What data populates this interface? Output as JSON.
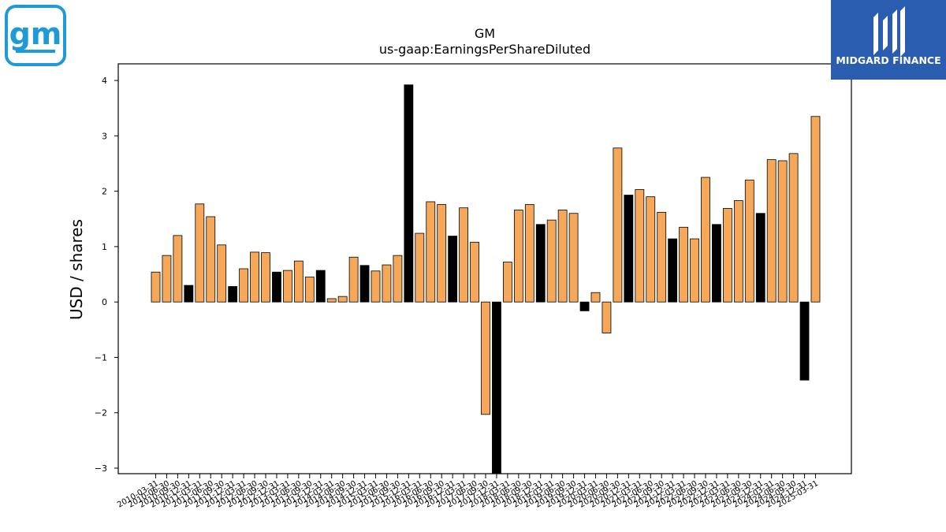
{
  "logo": {
    "text": "gm",
    "icon": "gm-logo-icon",
    "color": "#1e9bd7"
  },
  "brand": {
    "name": "MIDGARD FINANCE",
    "icon": "midgard-finance-logo-icon",
    "color": "#2a5db0"
  },
  "chart_data": {
    "type": "bar",
    "title": "GM",
    "subtitle": "us-gaap:EarningsPerShareDiluted",
    "xlabel": "",
    "ylabel": "USD / shares",
    "ylim": [
      -3.1,
      4.3
    ],
    "yticks": [
      -3,
      -2,
      -1,
      0,
      1,
      2,
      3,
      4
    ],
    "grid": false,
    "colors": {
      "quarter": "#f5a85a",
      "annual": "#000000"
    },
    "categories": [
      "2010-03-31",
      "2010-06-30",
      "2010-09-30",
      "2010-12-31",
      "2011-03-31",
      "2011-06-30",
      "2011-09-30",
      "2011-12-31",
      "2012-03-31",
      "2012-06-30",
      "2012-09-30",
      "2012-12-31",
      "2013-03-31",
      "2013-06-30",
      "2013-09-30",
      "2013-12-31",
      "2014-03-31",
      "2014-06-30",
      "2014-09-30",
      "2014-12-31",
      "2015-03-31",
      "2015-06-30",
      "2015-09-30",
      "2015-12-31",
      "2016-03-31",
      "2016-06-30",
      "2016-09-30",
      "2016-12-31",
      "2017-03-31",
      "2017-06-30",
      "2017-09-30",
      "2017-12-31",
      "2018-03-31",
      "2018-06-30",
      "2018-09-30",
      "2018-12-31",
      "2019-03-31",
      "2019-06-30",
      "2019-09-30",
      "2019-12-31",
      "2020-03-31",
      "2020-06-30",
      "2020-09-30",
      "2020-12-31",
      "2021-03-31",
      "2021-06-30",
      "2021-09-30",
      "2021-12-31",
      "2022-03-31",
      "2022-06-30",
      "2022-09-30",
      "2022-12-31",
      "2023-03-31",
      "2023-06-30",
      "2023-09-30",
      "2023-12-31",
      "2024-03-31",
      "2024-06-30",
      "2024-09-30",
      "2024-12-31",
      "2025-03-31"
    ],
    "values": [
      0.54,
      0.84,
      1.2,
      0.3,
      1.77,
      1.54,
      1.03,
      0.28,
      0.6,
      0.9,
      0.89,
      0.54,
      0.57,
      0.74,
      0.45,
      0.57,
      0.06,
      0.1,
      0.81,
      0.66,
      0.56,
      0.67,
      0.84,
      3.92,
      1.24,
      1.81,
      1.76,
      1.19,
      1.7,
      1.08,
      -2.03,
      -3.1,
      0.72,
      1.66,
      1.76,
      1.4,
      1.48,
      1.66,
      1.6,
      -0.16,
      0.17,
      -0.56,
      2.78,
      1.93,
      2.03,
      1.9,
      1.62,
      1.14,
      1.35,
      1.14,
      2.25,
      1.4,
      1.69,
      1.83,
      2.2,
      1.6,
      2.57,
      2.55,
      2.68,
      -1.41,
      3.35
    ],
    "bar_kind": [
      "q",
      "q",
      "q",
      "a",
      "q",
      "q",
      "q",
      "a",
      "q",
      "q",
      "q",
      "a",
      "q",
      "q",
      "q",
      "a",
      "q",
      "q",
      "q",
      "a",
      "q",
      "q",
      "q",
      "a",
      "q",
      "q",
      "q",
      "a",
      "q",
      "q",
      "q",
      "a",
      "q",
      "q",
      "q",
      "a",
      "q",
      "q",
      "q",
      "a",
      "q",
      "q",
      "q",
      "a",
      "q",
      "q",
      "q",
      "a",
      "q",
      "q",
      "q",
      "a",
      "q",
      "q",
      "q",
      "a",
      "q",
      "q",
      "q",
      "a",
      "q"
    ]
  }
}
